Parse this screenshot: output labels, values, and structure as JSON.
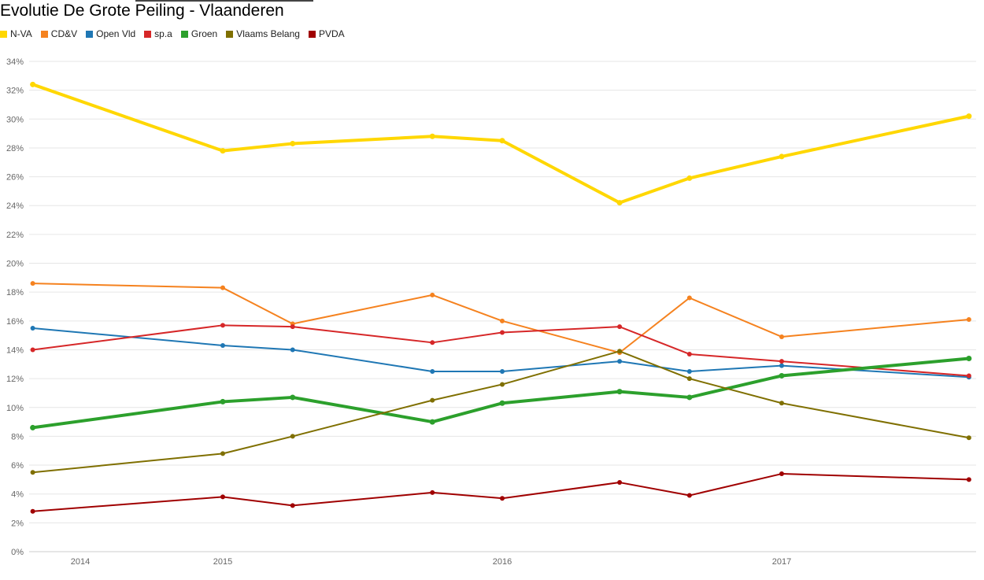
{
  "title": "Evolutie De Grote Peiling - Vlaanderen",
  "chart_data": {
    "type": "line",
    "title": "Evolutie De Grote Peiling - Vlaanderen",
    "xlabel": "",
    "ylabel": "",
    "x": [
      2014.32,
      2015.0,
      2015.25,
      2015.75,
      2016.0,
      2016.42,
      2016.67,
      2017.0,
      2017.67
    ],
    "xlim": [
      2014.3,
      2017.7
    ],
    "ylim": [
      0,
      34
    ],
    "y_ticks": [
      "0%",
      "2%",
      "4%",
      "6%",
      "8%",
      "10%",
      "12%",
      "14%",
      "16%",
      "18%",
      "20%",
      "22%",
      "24%",
      "26%",
      "28%",
      "30%",
      "32%",
      "34%"
    ],
    "x_ticks": [
      {
        "value": 2014,
        "label": "2014"
      },
      {
        "value": 2015,
        "label": "2015"
      },
      {
        "value": 2016,
        "label": "2016"
      },
      {
        "value": 2017,
        "label": "2017"
      }
    ],
    "grid": true,
    "legend_position": "top-left",
    "series": [
      {
        "name": "N-VA",
        "color": "#ffd700",
        "thick": true,
        "values": [
          32.4,
          27.8,
          28.3,
          28.8,
          28.5,
          24.2,
          25.9,
          27.4,
          30.2
        ]
      },
      {
        "name": "CD&V",
        "color": "#f5821f",
        "thick": false,
        "values": [
          18.6,
          18.3,
          15.8,
          17.8,
          16.0,
          13.8,
          17.6,
          14.9,
          16.1
        ]
      },
      {
        "name": "Open Vld",
        "color": "#1f77b4",
        "thick": false,
        "values": [
          15.5,
          14.3,
          14.0,
          12.5,
          12.5,
          13.2,
          12.5,
          12.9,
          12.1
        ]
      },
      {
        "name": "sp.a",
        "color": "#d62728",
        "thick": false,
        "values": [
          14.0,
          15.7,
          15.6,
          14.5,
          15.2,
          15.6,
          13.7,
          13.2,
          12.2
        ]
      },
      {
        "name": "Groen",
        "color": "#2ca02c",
        "thick": true,
        "values": [
          8.6,
          10.4,
          10.7,
          9.0,
          10.3,
          11.1,
          10.7,
          12.2,
          13.4
        ]
      },
      {
        "name": "Vlaams Belang",
        "color": "#7f6f00",
        "thick": false,
        "values": [
          5.5,
          6.8,
          8.0,
          10.5,
          11.6,
          13.9,
          12.0,
          10.3,
          7.9
        ]
      },
      {
        "name": "PVDA",
        "color": "#a00000",
        "thick": false,
        "values": [
          2.8,
          3.8,
          3.2,
          4.1,
          3.7,
          4.8,
          3.9,
          5.4,
          5.0
        ]
      }
    ]
  }
}
